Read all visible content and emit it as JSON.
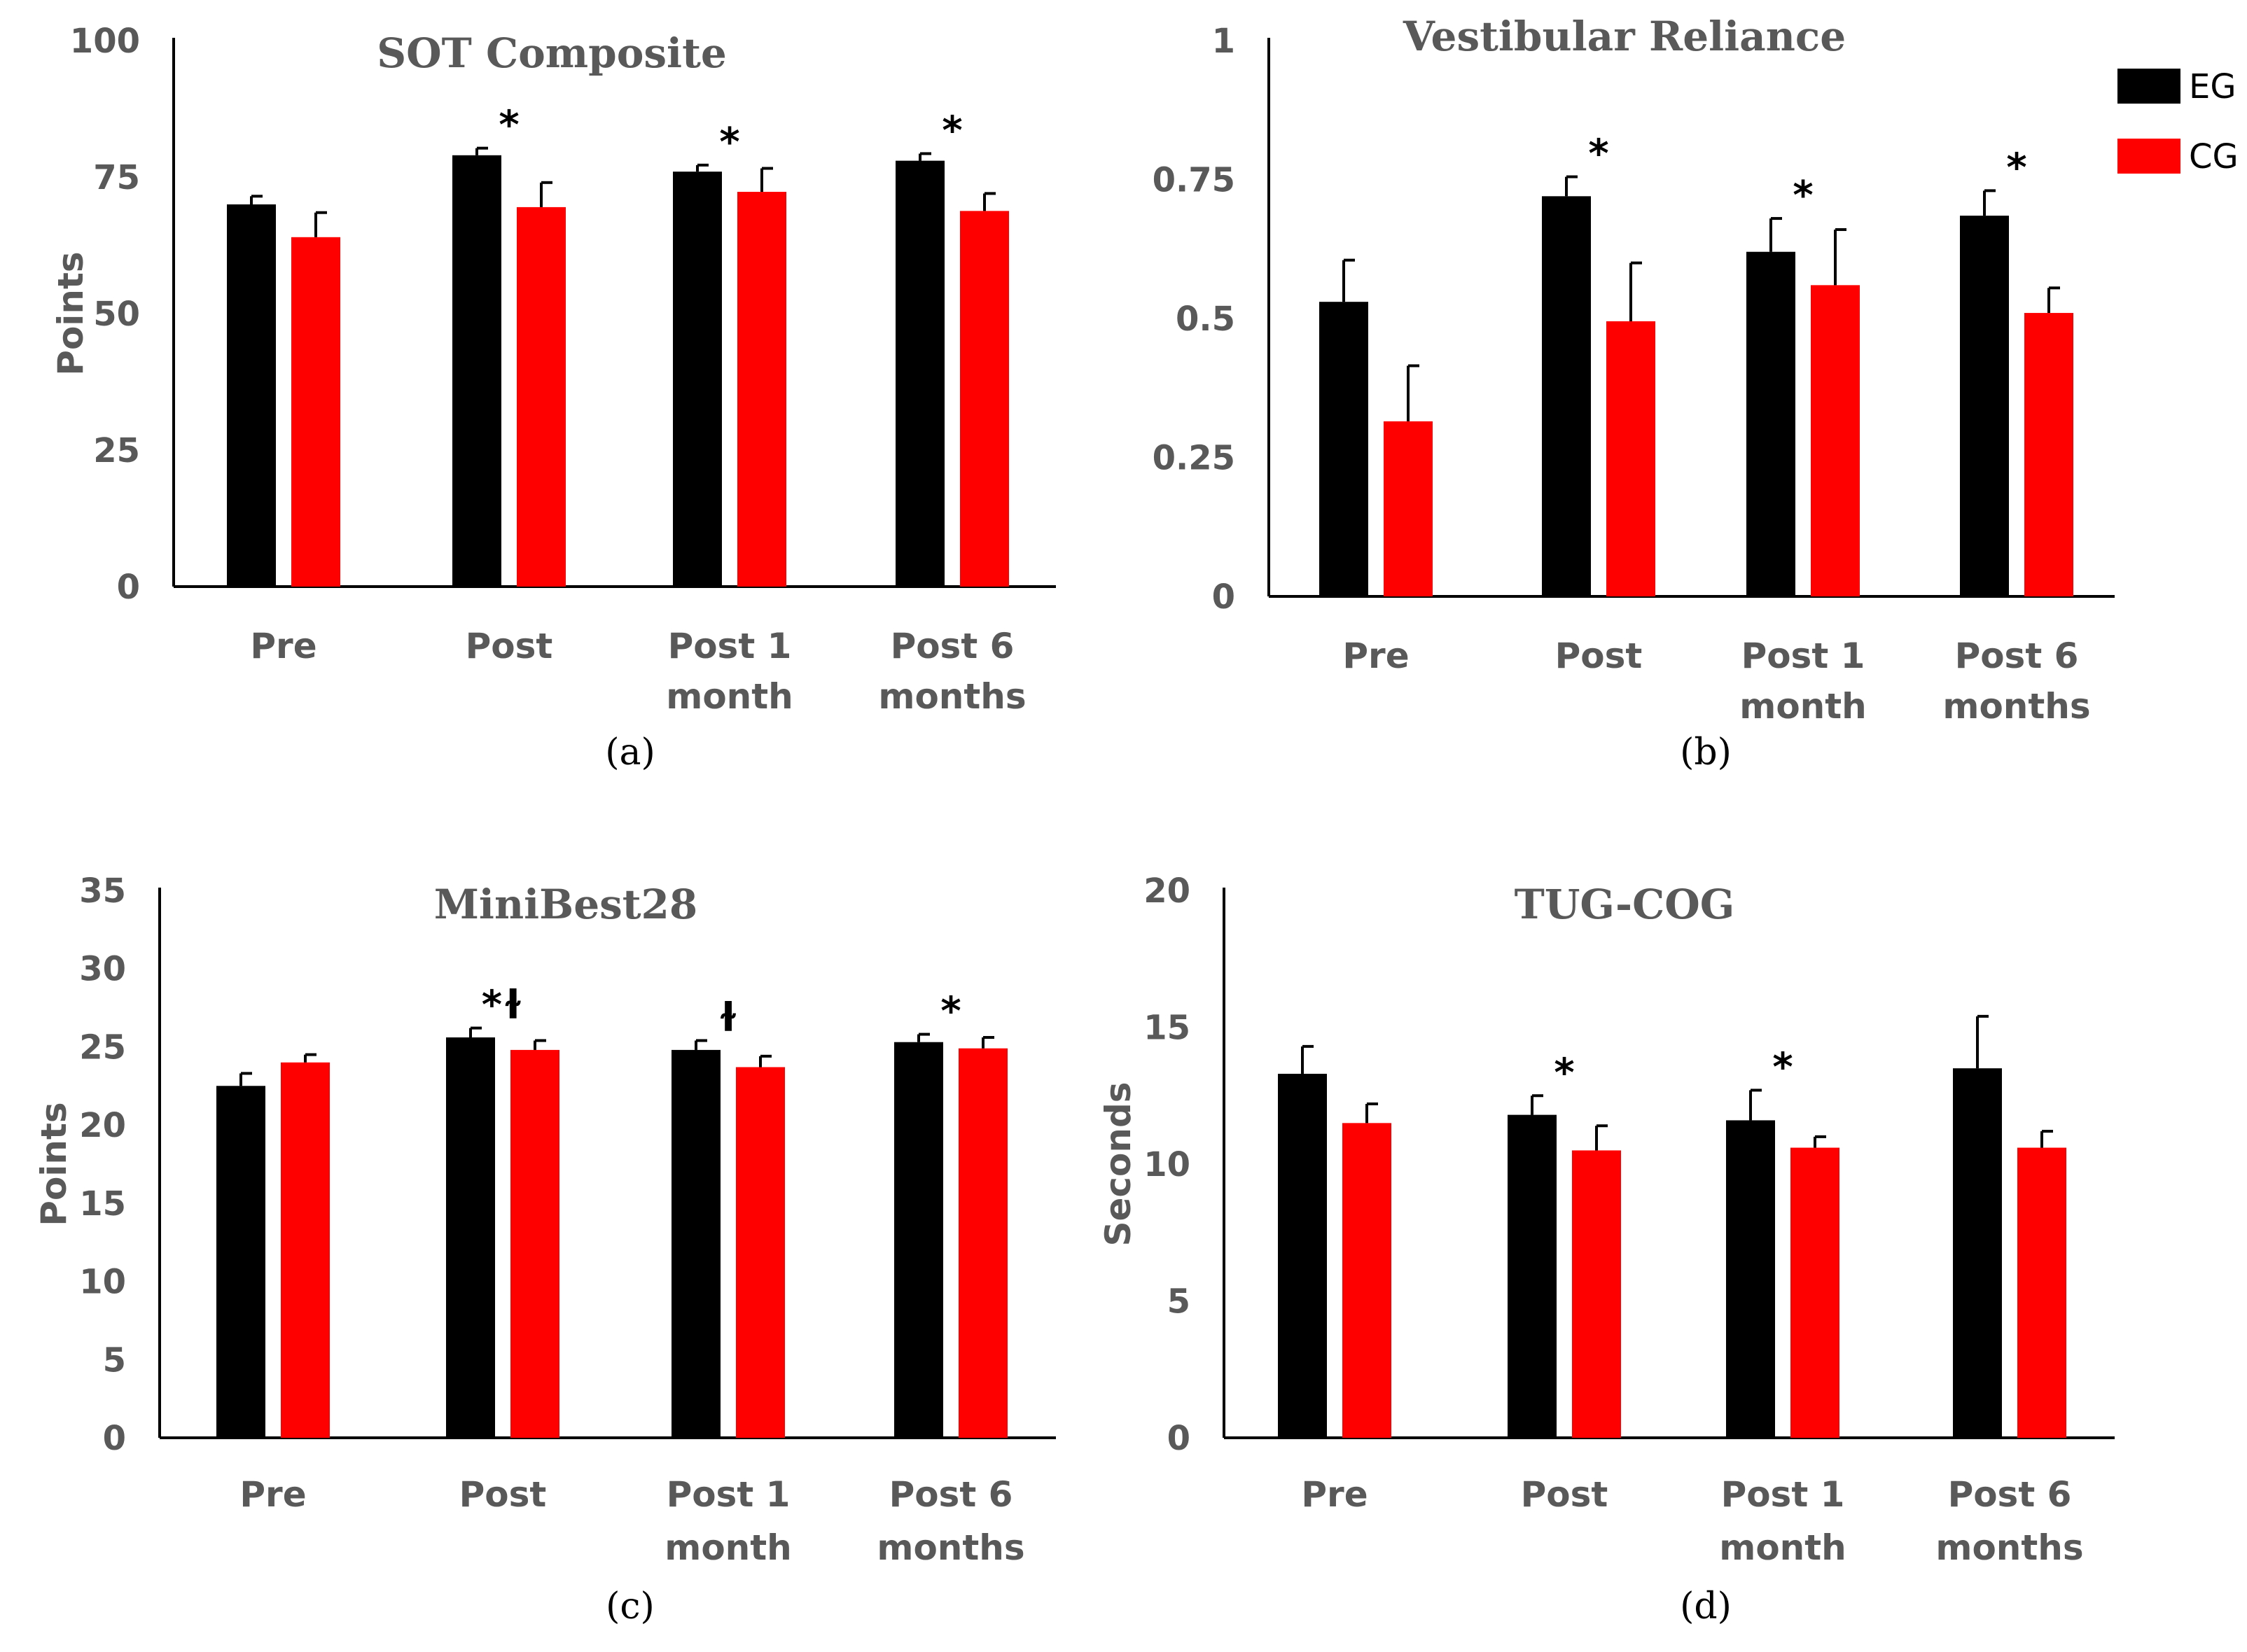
{
  "legend": {
    "items": [
      {
        "label": "EG",
        "color": "#000000"
      },
      {
        "label": "CG",
        "color": "#ff0000"
      }
    ],
    "placement": "top-right"
  },
  "chart_data": [
    {
      "id": "a",
      "type": "bar",
      "title": "SOT Composite",
      "ylabel": "Points",
      "panel_label": "(a)",
      "categories": [
        "Pre",
        "Post",
        "Post 1 month",
        "Post 6 months"
      ],
      "ylim": [
        0,
        100
      ],
      "yticks": [
        "0",
        "25",
        "50",
        "75",
        "100"
      ],
      "series": [
        {
          "name": "EG",
          "color": "#000000",
          "values": [
            70,
            79,
            76,
            78
          ],
          "errors": [
            1.5,
            1.3,
            1.2,
            1.3
          ]
        },
        {
          "name": "CG",
          "color": "#ff0000",
          "values": [
            64,
            69.5,
            72.3,
            68.8
          ],
          "errors": [
            4.5,
            4.5,
            4.3,
            3.2
          ]
        }
      ],
      "annotations": [
        "",
        "*",
        "*",
        "*"
      ],
      "grid": false
    },
    {
      "id": "b",
      "type": "bar",
      "title": "Vestibular Reliance",
      "ylabel": "",
      "panel_label": "(b)",
      "categories": [
        "Pre",
        "Post",
        "Post 1 month",
        "Post 6 months"
      ],
      "ylim": [
        0,
        1
      ],
      "yticks": [
        "0",
        "0.25",
        "0.5",
        "0.75",
        "1"
      ],
      "series": [
        {
          "name": "EG",
          "color": "#000000",
          "values": [
            0.53,
            0.72,
            0.62,
            0.685
          ],
          "errors": [
            0.075,
            0.035,
            0.06,
            0.045
          ]
        },
        {
          "name": "CG",
          "color": "#ff0000",
          "values": [
            0.315,
            0.495,
            0.56,
            0.51
          ],
          "errors": [
            0.1,
            0.105,
            0.1,
            0.045
          ]
        }
      ],
      "annotations": [
        "",
        "*",
        "*",
        "*"
      ],
      "grid": false
    },
    {
      "id": "c",
      "type": "bar",
      "title": "MiniBest28",
      "ylabel": "Points",
      "panel_label": "(c)",
      "categories": [
        "Pre",
        "Post",
        "Post 1 month",
        "Post 6 months"
      ],
      "ylim": [
        0,
        35
      ],
      "yticks": [
        "0",
        "5",
        "10",
        "15",
        "20",
        "25",
        "30",
        "35"
      ],
      "series": [
        {
          "name": "EG",
          "color": "#000000",
          "values": [
            22.5,
            25.6,
            24.8,
            25.3
          ],
          "errors": [
            0.8,
            0.6,
            0.6,
            0.5
          ]
        },
        {
          "name": "CG",
          "color": "#ff0000",
          "values": [
            24,
            24.8,
            23.7,
            24.9
          ],
          "errors": [
            0.5,
            0.6,
            0.7,
            0.7
          ]
        }
      ],
      "annotations": [
        "",
        "*ɫ",
        "ɫ",
        "*"
      ],
      "grid": false
    },
    {
      "id": "d",
      "type": "bar",
      "title": "TUG-COG",
      "ylabel": "Seconds",
      "panel_label": "(d)",
      "categories": [
        "Pre",
        "Post",
        "Post 1 month",
        "Post 6 months"
      ],
      "ylim": [
        0,
        20
      ],
      "yticks": [
        "0",
        "5",
        "10",
        "15",
        "20"
      ],
      "series": [
        {
          "name": "EG",
          "color": "#000000",
          "values": [
            13.3,
            11.8,
            11.6,
            13.5
          ],
          "errors": [
            1.0,
            0.7,
            1.1,
            1.9
          ]
        },
        {
          "name": "CG",
          "color": "#ff0000",
          "values": [
            11.5,
            10.5,
            10.6,
            10.6
          ],
          "errors": [
            0.7,
            0.9,
            0.4,
            0.6
          ]
        }
      ],
      "annotations": [
        "",
        "*",
        "*",
        ""
      ],
      "grid": false
    }
  ]
}
